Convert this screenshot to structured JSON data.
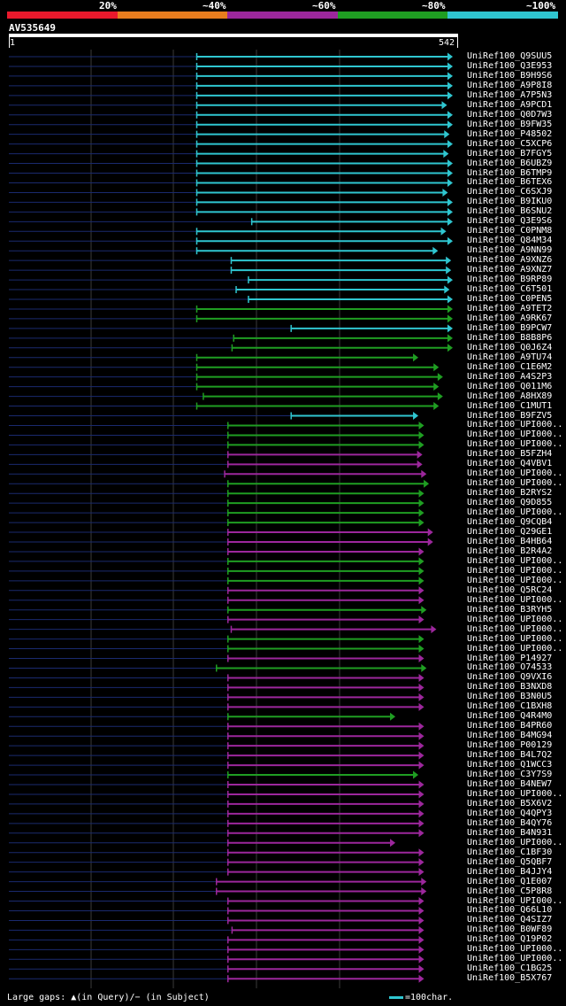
{
  "legend": {
    "labels": [
      "20%",
      "~40%",
      "~60%",
      "~80%",
      "~100%"
    ],
    "colors": [
      "#e8192c",
      "#e87d1e",
      "#9c279c",
      "#1f9e22",
      "#2fc6d0"
    ]
  },
  "query": {
    "id": "AV535649",
    "start": "1",
    "end": "542",
    "length": 542
  },
  "footer": {
    "gaps_text": "Large gaps: ▲(in Query)/− (in Subject)",
    "scale_text": "=100char."
  },
  "hits": [
    {
      "label": "UniRef100_Q9SUU5",
      "start": 230,
      "end": 542,
      "color": "cyan"
    },
    {
      "label": "UniRef100_Q3E953",
      "start": 230,
      "end": 542,
      "color": "cyan"
    },
    {
      "label": "UniRef100_B9H9S6",
      "start": 230,
      "end": 542,
      "color": "cyan"
    },
    {
      "label": "UniRef100_A9P8I8",
      "start": 230,
      "end": 542,
      "color": "cyan"
    },
    {
      "label": "UniRef100_A7P5N3",
      "start": 230,
      "end": 542,
      "color": "cyan"
    },
    {
      "label": "UniRef100_A9PCD1",
      "start": 230,
      "end": 535,
      "color": "cyan"
    },
    {
      "label": "UniRef100_Q0D7W3",
      "start": 230,
      "end": 542,
      "color": "cyan"
    },
    {
      "label": "UniRef100_B9FW35",
      "start": 230,
      "end": 542,
      "color": "cyan"
    },
    {
      "label": "UniRef100_P48502",
      "start": 230,
      "end": 538,
      "color": "cyan"
    },
    {
      "label": "UniRef100_C5XCP6",
      "start": 230,
      "end": 542,
      "color": "cyan"
    },
    {
      "label": "UniRef100_B7FGY5",
      "start": 230,
      "end": 537,
      "color": "cyan"
    },
    {
      "label": "UniRef100_B6UBZ9",
      "start": 230,
      "end": 542,
      "color": "cyan"
    },
    {
      "label": "UniRef100_B6TMP9",
      "start": 230,
      "end": 542,
      "color": "cyan"
    },
    {
      "label": "UniRef100_B6TEX6",
      "start": 230,
      "end": 542,
      "color": "cyan"
    },
    {
      "label": "UniRef100_C6SXJ9",
      "start": 230,
      "end": 536,
      "color": "cyan"
    },
    {
      "label": "UniRef100_B9IKU0",
      "start": 230,
      "end": 542,
      "color": "cyan"
    },
    {
      "label": "UniRef100_B6SNU2",
      "start": 230,
      "end": 542,
      "color": "cyan"
    },
    {
      "label": "UniRef100_Q3E9S6",
      "start": 297,
      "end": 542,
      "color": "cyan"
    },
    {
      "label": "UniRef100_C0PNM8",
      "start": 230,
      "end": 534,
      "color": "cyan"
    },
    {
      "label": "UniRef100_Q84M34",
      "start": 230,
      "end": 542,
      "color": "cyan"
    },
    {
      "label": "UniRef100_A9NN99",
      "start": 230,
      "end": 524,
      "color": "cyan"
    },
    {
      "label": "UniRef100_A9XNZ6",
      "start": 272,
      "end": 540,
      "color": "cyan"
    },
    {
      "label": "UniRef100_A9XNZ7",
      "start": 272,
      "end": 540,
      "color": "cyan"
    },
    {
      "label": "UniRef100_B9RP89",
      "start": 293,
      "end": 542,
      "color": "cyan"
    },
    {
      "label": "UniRef100_C6T501",
      "start": 278,
      "end": 538,
      "color": "cyan"
    },
    {
      "label": "UniRef100_C0PEN5",
      "start": 293,
      "end": 542,
      "color": "cyan"
    },
    {
      "label": "UniRef100_A9TET2",
      "start": 230,
      "end": 542,
      "color": "green"
    },
    {
      "label": "UniRef100_A9RK67",
      "start": 230,
      "end": 542,
      "color": "green"
    },
    {
      "label": "UniRef100_B9PCW7",
      "start": 345,
      "end": 542,
      "color": "cyan"
    },
    {
      "label": "UniRef100_B8B8P6",
      "start": 275,
      "end": 542,
      "color": "green"
    },
    {
      "label": "UniRef100_Q0J6Z4",
      "start": 273,
      "end": 542,
      "color": "green"
    },
    {
      "label": "UniRef100_A9TU74",
      "start": 230,
      "end": 500,
      "color": "green"
    },
    {
      "label": "UniRef100_C1E6M2",
      "start": 230,
      "end": 525,
      "color": "green"
    },
    {
      "label": "UniRef100_A4S2P3",
      "start": 230,
      "end": 530,
      "color": "green"
    },
    {
      "label": "UniRef100_Q011M6",
      "start": 230,
      "end": 525,
      "color": "green"
    },
    {
      "label": "UniRef100_A8HX89",
      "start": 238,
      "end": 530,
      "color": "green"
    },
    {
      "label": "UniRef100_C1MUT1",
      "start": 230,
      "end": 525,
      "color": "green"
    },
    {
      "label": "UniRef100_B9FZV5",
      "start": 345,
      "end": 500,
      "color": "cyan"
    },
    {
      "label": "UniRef100_UPI000..",
      "start": 268,
      "end": 507,
      "color": "green"
    },
    {
      "label": "UniRef100_UPI000..",
      "start": 268,
      "end": 507,
      "color": "green"
    },
    {
      "label": "UniRef100_UPI000..",
      "start": 268,
      "end": 507,
      "color": "green"
    },
    {
      "label": "UniRef100_B5FZH4",
      "start": 268,
      "end": 505,
      "color": "purple"
    },
    {
      "label": "UniRef100_Q4VBV1",
      "start": 268,
      "end": 505,
      "color": "purple"
    },
    {
      "label": "UniRef100_UPI000..",
      "start": 264,
      "end": 510,
      "color": "purple"
    },
    {
      "label": "UniRef100_UPI000..",
      "start": 268,
      "end": 513,
      "color": "green"
    },
    {
      "label": "UniRef100_B2RYS2",
      "start": 268,
      "end": 507,
      "color": "green"
    },
    {
      "label": "UniRef100_Q9D855",
      "start": 268,
      "end": 507,
      "color": "green"
    },
    {
      "label": "UniRef100_UPI000..",
      "start": 268,
      "end": 507,
      "color": "green"
    },
    {
      "label": "UniRef100_Q9CQB4",
      "start": 268,
      "end": 507,
      "color": "green"
    },
    {
      "label": "UniRef100_Q29GE1",
      "start": 268,
      "end": 518,
      "color": "purple"
    },
    {
      "label": "UniRef100_B4HB64",
      "start": 268,
      "end": 518,
      "color": "purple"
    },
    {
      "label": "UniRef100_B2R4A2",
      "start": 268,
      "end": 507,
      "color": "purple"
    },
    {
      "label": "UniRef100_UPI000..",
      "start": 268,
      "end": 507,
      "color": "green"
    },
    {
      "label": "UniRef100_UPI000..",
      "start": 268,
      "end": 507,
      "color": "green"
    },
    {
      "label": "UniRef100_UPI000..",
      "start": 268,
      "end": 507,
      "color": "green"
    },
    {
      "label": "UniRef100_Q5RC24",
      "start": 268,
      "end": 507,
      "color": "purple"
    },
    {
      "label": "UniRef100_UPI000..",
      "start": 268,
      "end": 507,
      "color": "purple"
    },
    {
      "label": "UniRef100_B3RYH5",
      "start": 268,
      "end": 510,
      "color": "green"
    },
    {
      "label": "UniRef100_UPI000..",
      "start": 268,
      "end": 507,
      "color": "purple"
    },
    {
      "label": "UniRef100_UPI000..",
      "start": 272,
      "end": 522,
      "color": "purple"
    },
    {
      "label": "UniRef100_UPI000..",
      "start": 268,
      "end": 507,
      "color": "green"
    },
    {
      "label": "UniRef100_UPI000..",
      "start": 268,
      "end": 507,
      "color": "green"
    },
    {
      "label": "UniRef100_P14927",
      "start": 268,
      "end": 507,
      "color": "purple"
    },
    {
      "label": "UniRef100_O74533",
      "start": 254,
      "end": 510,
      "color": "green"
    },
    {
      "label": "UniRef100_Q9VXI6",
      "start": 268,
      "end": 507,
      "color": "purple"
    },
    {
      "label": "UniRef100_B3NXD8",
      "start": 268,
      "end": 507,
      "color": "purple"
    },
    {
      "label": "UniRef100_B3N0U5",
      "start": 268,
      "end": 507,
      "color": "purple"
    },
    {
      "label": "UniRef100_C1BXH8",
      "start": 268,
      "end": 507,
      "color": "purple"
    },
    {
      "label": "UniRef100_Q4R4M0",
      "start": 268,
      "end": 472,
      "color": "green"
    },
    {
      "label": "UniRef100_B4PR60",
      "start": 268,
      "end": 507,
      "color": "purple"
    },
    {
      "label": "UniRef100_B4MG94",
      "start": 268,
      "end": 507,
      "color": "purple"
    },
    {
      "label": "UniRef100_P00129",
      "start": 268,
      "end": 507,
      "color": "purple"
    },
    {
      "label": "UniRef100_B4L7Q2",
      "start": 268,
      "end": 507,
      "color": "purple"
    },
    {
      "label": "UniRef100_Q1WCC3",
      "start": 268,
      "end": 507,
      "color": "purple"
    },
    {
      "label": "UniRef100_C3Y7S9",
      "start": 268,
      "end": 500,
      "color": "green"
    },
    {
      "label": "UniRef100_B4NEW7",
      "start": 268,
      "end": 507,
      "color": "purple"
    },
    {
      "label": "UniRef100_UPI000..",
      "start": 268,
      "end": 507,
      "color": "purple"
    },
    {
      "label": "UniRef100_B5X6V2",
      "start": 268,
      "end": 507,
      "color": "purple"
    },
    {
      "label": "UniRef100_Q4QPY3",
      "start": 268,
      "end": 507,
      "color": "purple"
    },
    {
      "label": "UniRef100_B4QY76",
      "start": 268,
      "end": 507,
      "color": "purple"
    },
    {
      "label": "UniRef100_B4N931",
      "start": 268,
      "end": 507,
      "color": "purple"
    },
    {
      "label": "UniRef100_UPI000..",
      "start": 268,
      "end": 472,
      "color": "purple"
    },
    {
      "label": "UniRef100_C1BF30",
      "start": 268,
      "end": 507,
      "color": "purple"
    },
    {
      "label": "UniRef100_Q5QBF7",
      "start": 268,
      "end": 507,
      "color": "purple"
    },
    {
      "label": "UniRef100_B4JJY4",
      "start": 268,
      "end": 507,
      "color": "purple"
    },
    {
      "label": "UniRef100_Q1E007",
      "start": 254,
      "end": 510,
      "color": "purple"
    },
    {
      "label": "UniRef100_C5P8R8",
      "start": 254,
      "end": 510,
      "color": "purple"
    },
    {
      "label": "UniRef100_UPI000..",
      "start": 268,
      "end": 507,
      "color": "purple"
    },
    {
      "label": "UniRef100_Q66L10",
      "start": 268,
      "end": 507,
      "color": "purple"
    },
    {
      "label": "UniRef100_Q4SIZ7",
      "start": 268,
      "end": 507,
      "color": "purple"
    },
    {
      "label": "UniRef100_B0WF89",
      "start": 273,
      "end": 507,
      "color": "purple"
    },
    {
      "label": "UniRef100_Q19P02",
      "start": 268,
      "end": 507,
      "color": "purple"
    },
    {
      "label": "UniRef100_UPI000..",
      "start": 268,
      "end": 507,
      "color": "purple"
    },
    {
      "label": "UniRef100_UPI000..",
      "start": 268,
      "end": 507,
      "color": "purple"
    },
    {
      "label": "UniRef100_C1BG25",
      "start": 268,
      "end": 507,
      "color": "purple"
    },
    {
      "label": "UniRef100_B5X767",
      "start": 268,
      "end": 507,
      "color": "purple"
    }
  ]
}
